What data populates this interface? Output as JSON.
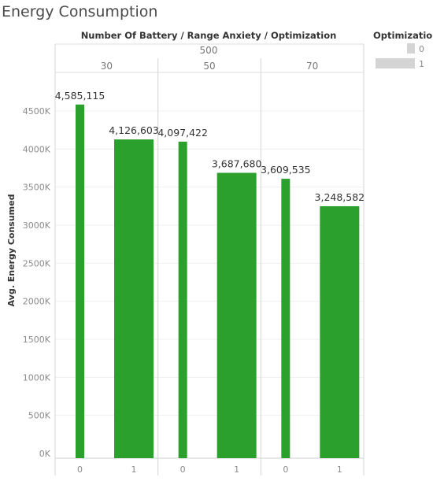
{
  "chart_data": {
    "type": "bar",
    "title": "Energy Consumption",
    "header": "Number Of Battery / Range Anxiety / Optimization",
    "level1": "500",
    "groups": [
      "30",
      "50",
      "70"
    ],
    "categories": [
      "0",
      "1"
    ],
    "series": [
      {
        "group": "30",
        "values": [
          4585115,
          4126603
        ],
        "labels": [
          "4,585,115",
          "4,126,603"
        ]
      },
      {
        "group": "50",
        "values": [
          4097422,
          3687680
        ],
        "labels": [
          "4,097,422",
          "3,687,680"
        ]
      },
      {
        "group": "70",
        "values": [
          3609535,
          3248582
        ],
        "labels": [
          "3,609,535",
          "3,248,582"
        ]
      }
    ],
    "ylabel": "Avg. Energy Consumed",
    "ylim": [
      0,
      4700000
    ],
    "yticks": [
      0,
      500000,
      1000000,
      1500000,
      2000000,
      2500000,
      3000000,
      3500000,
      4000000,
      4500000
    ],
    "ytick_labels": [
      "0K",
      "500K",
      "1000K",
      "1500K",
      "2000K",
      "2500K",
      "3000K",
      "3500K",
      "4000K",
      "4500K"
    ],
    "bar_color": "#2ca02c",
    "grid": true,
    "legend": {
      "title": "Optimization",
      "items": [
        "0",
        "1"
      ],
      "placement": "top-right",
      "color": "#d4d4d4"
    }
  }
}
